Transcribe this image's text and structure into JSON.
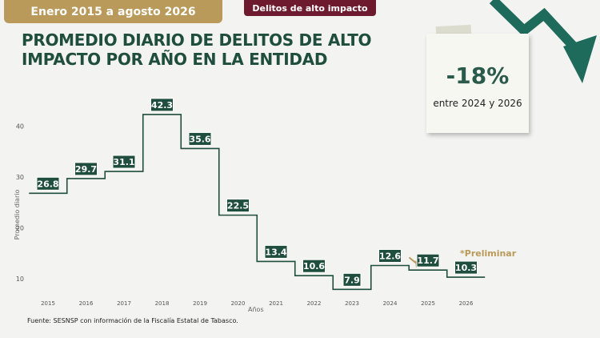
{
  "header": {
    "period_badge": "Enero 2015 a agosto 2026",
    "topic_badge": "Delitos de alto impacto"
  },
  "title": "PROMEDIO DIARIO DE DELITOS DE ALTO IMPACTO POR AÑO EN LA ENTIDAD",
  "note": {
    "value": "-18%",
    "caption": "entre 2024 y 2026"
  },
  "preliminary_label": "*Preliminar",
  "source": "Fuente: SESNSP con información de la Fiscalía Estatal de Tabasco.",
  "colors": {
    "series": "#1f4d3e",
    "accent": "#b99a5a",
    "label_bg": "#1f4d3e",
    "trend_arrow": "#1e6b5c"
  },
  "icons": {
    "trend": "down-trend-arrow-icon"
  },
  "chart_data": {
    "type": "line",
    "step": true,
    "xlabel": "Años",
    "ylabel": "Promedio diario",
    "categories": [
      "2015",
      "2016",
      "2017",
      "2018",
      "2019",
      "2020",
      "2021",
      "2022",
      "2023",
      "2024",
      "2025",
      "2026"
    ],
    "values": [
      26.8,
      29.7,
      31.1,
      42.3,
      35.6,
      22.5,
      13.4,
      10.6,
      7.9,
      12.6,
      11.7,
      10.3
    ],
    "data_labels": [
      "26.8",
      "29.7",
      "31.1",
      "42.3",
      "35.6",
      "22.5",
      "13.4",
      "10.6",
      "7.9",
      "12.6",
      "11.7",
      "10.3"
    ],
    "yticks": [
      10,
      20,
      30,
      40
    ],
    "ylim": [
      7,
      42.3
    ],
    "grid": false,
    "preliminary_from": "2025"
  }
}
